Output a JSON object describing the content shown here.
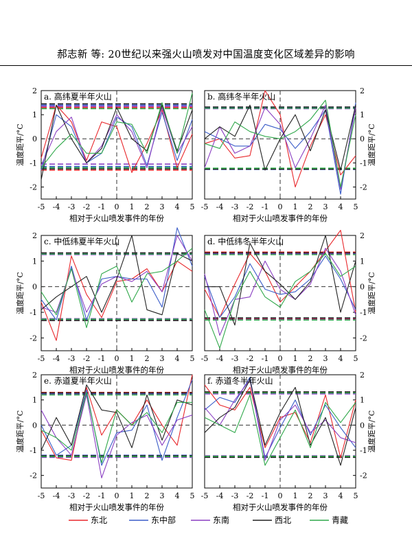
{
  "header": {
    "title": "郝志新  等: 20世纪以来强火山喷发对中国温度变化区域差异的影响"
  },
  "chart_data": {
    "type": "line",
    "x": [
      -5,
      -4,
      -3,
      -2,
      -1,
      0,
      1,
      2,
      3,
      4,
      5
    ],
    "xlim": [
      -5,
      5
    ],
    "ylim": [
      -2.5,
      2
    ],
    "yticks": [
      -2,
      -1,
      0,
      1,
      2
    ],
    "xlabel": "相对于火山喷发事件的年份",
    "ylabel": "温度距平/°C",
    "colors": {
      "东北": "#e8272b",
      "东中部": "#3a5cc8",
      "东南": "#8a3fc2",
      "西北": "#222222",
      "青藏": "#2fa84a"
    },
    "legend": [
      {
        "name": "东北",
        "color": "#e8272b"
      },
      {
        "name": "东中部",
        "color": "#3a5cc8"
      },
      {
        "name": "东南",
        "color": "#8a3fc2"
      },
      {
        "name": "西北",
        "color": "#222222"
      },
      {
        "name": "青藏",
        "color": "#2fa84a"
      }
    ],
    "panels": [
      {
        "id": "a",
        "title": "a. 高纬夏半年火山",
        "yaxis_side": "left",
        "series": [
          {
            "name": "东北",
            "values": [
              -0.8,
              1.4,
              0.7,
              -0.9,
              0.7,
              0.5,
              -1.4,
              -0.2,
              1.2,
              -1.2,
              0.2
            ]
          },
          {
            "name": "东中部",
            "values": [
              -1.3,
              1.0,
              0.5,
              -1.0,
              -0.6,
              0.9,
              0.5,
              -1.1,
              1.1,
              -0.9,
              0.8
            ]
          },
          {
            "name": "东南",
            "values": [
              -1.1,
              0.3,
              0.9,
              -1.0,
              -0.3,
              1.0,
              0.3,
              -1.2,
              1.3,
              -0.6,
              0.5
            ]
          },
          {
            "name": "西北",
            "values": [
              -1.7,
              1.4,
              0.0,
              -1.0,
              -0.4,
              1.3,
              0.0,
              -0.5,
              1.4,
              -0.5,
              1.2
            ]
          },
          {
            "name": "青藏",
            "values": [
              -1.2,
              -0.4,
              0.2,
              -0.6,
              -0.6,
              0.7,
              0.6,
              -0.6,
              1.5,
              -0.6,
              1.9
            ]
          }
        ],
        "thresholds": [
          {
            "name": "东北",
            "values": [
              1.3,
              -1.3
            ]
          },
          {
            "name": "东中部",
            "values": [
              1.4,
              -1.15
            ]
          },
          {
            "name": "东南",
            "values": [
              1.35,
              -1.05
            ]
          },
          {
            "name": "西北",
            "values": [
              1.45,
              -1.25
            ]
          },
          {
            "name": "青藏",
            "values": [
              1.25,
              -1.2
            ]
          }
        ]
      },
      {
        "id": "b",
        "title": "b. 高纬冬半年火山",
        "yaxis_side": "right",
        "series": [
          {
            "name": "东北",
            "values": [
              -0.2,
              0.0,
              -0.8,
              -0.7,
              2.0,
              1.0,
              -2.0,
              -0.3,
              1.0,
              -1.5,
              -0.7
            ]
          },
          {
            "name": "东中部",
            "values": [
              0.3,
              0.0,
              -0.3,
              -0.3,
              0.6,
              0.4,
              -0.4,
              0.3,
              1.2,
              -2.3,
              1.5
            ]
          },
          {
            "name": "东南",
            "values": [
              -1.2,
              0.5,
              -0.6,
              -0.3,
              1.3,
              0.6,
              -1.2,
              0.0,
              1.4,
              -2.1,
              1.3
            ]
          },
          {
            "name": "西北",
            "values": [
              0.0,
              0.5,
              0.1,
              1.4,
              -1.3,
              0.0,
              1.0,
              -0.5,
              1.2,
              -1.3,
              1.4
            ]
          },
          {
            "name": "青藏",
            "values": [
              -0.2,
              -0.4,
              0.7,
              0.3,
              0.1,
              0.0,
              0.3,
              0.8,
              1.6,
              -2.0,
              1.0
            ]
          }
        ],
        "thresholds": [
          {
            "name": "东北",
            "values": [
              1.3,
              -1.25
            ]
          },
          {
            "name": "东中部",
            "values": [
              1.28,
              -1.27
            ]
          },
          {
            "name": "东南",
            "values": [
              1.25,
              -1.24
            ]
          },
          {
            "name": "西北",
            "values": [
              1.32,
              -1.26
            ]
          },
          {
            "name": "青藏",
            "values": [
              1.27,
              -1.22
            ]
          }
        ]
      },
      {
        "id": "c",
        "title": "c. 中低纬夏半年火山",
        "yaxis_side": "left",
        "series": [
          {
            "name": "东北",
            "values": [
              -0.6,
              -2.1,
              1.2,
              -0.3,
              -1.2,
              0.2,
              0.3,
              0.7,
              -0.2,
              1.0,
              0.6
            ]
          },
          {
            "name": "东中部",
            "values": [
              -0.5,
              -1.3,
              0.8,
              -1.3,
              0.3,
              0.4,
              0.3,
              0.3,
              -0.8,
              2.3,
              0.8
            ]
          },
          {
            "name": "东南",
            "values": [
              -0.8,
              -1.0,
              0.7,
              -1.0,
              0.1,
              0.4,
              0.2,
              0.6,
              -0.2,
              2.0,
              1.0
            ]
          },
          {
            "name": "西北",
            "values": [
              -0.9,
              -0.4,
              0.0,
              0.4,
              -1.0,
              0.3,
              2.0,
              -0.9,
              -1.1,
              1.3,
              1.0
            ]
          },
          {
            "name": "青藏",
            "values": [
              -0.2,
              -1.1,
              0.7,
              -1.6,
              0.5,
              0.8,
              -0.6,
              0.5,
              0.6,
              1.0,
              1.5
            ]
          }
        ],
        "thresholds": [
          {
            "name": "东北",
            "values": [
              1.3,
              -1.3
            ]
          },
          {
            "name": "东中部",
            "values": [
              1.28,
              -1.28
            ]
          },
          {
            "name": "东南",
            "values": [
              1.25,
              -1.25
            ]
          },
          {
            "name": "西北",
            "values": [
              1.32,
              -1.32
            ]
          },
          {
            "name": "青藏",
            "values": [
              1.27,
              -1.27
            ]
          }
        ]
      },
      {
        "id": "d",
        "title": "d. 中低纬冬半年火山",
        "yaxis_side": "right",
        "series": [
          {
            "name": "东北",
            "values": [
              -0.1,
              -1.2,
              0.1,
              1.3,
              0.6,
              -0.6,
              0.0,
              0.6,
              1.4,
              2.2,
              -1.0
            ]
          },
          {
            "name": "东中部",
            "values": [
              0.4,
              -1.2,
              -0.4,
              0.9,
              -0.1,
              -0.3,
              -0.2,
              0.3,
              1.2,
              0.3,
              -0.9
            ]
          },
          {
            "name": "东南",
            "values": [
              0.5,
              -1.9,
              -0.5,
              -0.4,
              1.0,
              -0.1,
              -0.5,
              0.1,
              1.5,
              0.6,
              -1.1
            ]
          },
          {
            "name": "西北",
            "values": [
              0.0,
              0.0,
              -1.5,
              1.7,
              0.6,
              0.1,
              -0.5,
              0.2,
              2.0,
              -1.0,
              1.0
            ]
          },
          {
            "name": "青藏",
            "values": [
              -0.9,
              -2.4,
              -0.5,
              0.6,
              -0.4,
              -0.8,
              0.2,
              0.6,
              1.3,
              0.4,
              0.8
            ]
          }
        ],
        "thresholds": [
          {
            "name": "东北",
            "values": [
              1.35,
              -1.25
            ]
          },
          {
            "name": "东中部",
            "values": [
              1.3,
              -1.3
            ]
          },
          {
            "name": "东南",
            "values": [
              1.28,
              -1.28
            ]
          },
          {
            "name": "西北",
            "values": [
              1.32,
              -1.22
            ]
          },
          {
            "name": "青藏",
            "values": [
              1.25,
              -1.3
            ]
          }
        ]
      },
      {
        "id": "e",
        "title": "e. 赤道夏半年火山",
        "yaxis_side": "left",
        "series": [
          {
            "name": "东北",
            "values": [
              -0.2,
              -1.3,
              -1.4,
              1.5,
              -0.4,
              0.6,
              0.0,
              1.0,
              0.0,
              -0.8,
              2.0
            ]
          },
          {
            "name": "东中部",
            "values": [
              0.0,
              -1.2,
              -0.8,
              1.4,
              -1.6,
              -0.3,
              -0.2,
              0.8,
              -1.4,
              0.3,
              1.8
            ]
          },
          {
            "name": "东南",
            "values": [
              0.6,
              -0.5,
              -1.2,
              1.2,
              -2.1,
              -0.4,
              0.1,
              0.4,
              -0.8,
              0.2,
              0.4
            ]
          },
          {
            "name": "西北",
            "values": [
              -1.0,
              0.3,
              -0.8,
              1.6,
              0.6,
              0.5,
              -0.9,
              1.2,
              -0.6,
              1.0,
              0.8
            ]
          },
          {
            "name": "青藏",
            "values": [
              -0.2,
              -0.5,
              -1.0,
              1.3,
              -1.5,
              0.6,
              0.0,
              0.5,
              -0.3,
              0.9,
              0.9
            ]
          }
        ],
        "thresholds": [
          {
            "name": "东北",
            "values": [
              1.3,
              -1.25
            ]
          },
          {
            "name": "东中部",
            "values": [
              1.25,
              -1.2
            ]
          },
          {
            "name": "东南",
            "values": [
              1.22,
              -1.28
            ]
          },
          {
            "name": "西北",
            "values": [
              1.28,
              -1.22
            ]
          },
          {
            "name": "青藏",
            "values": [
              1.2,
              -1.25
            ]
          }
        ]
      },
      {
        "id": "f",
        "title": "f. 赤道冬半年火山",
        "yaxis_side": "right",
        "series": [
          {
            "name": "东北",
            "values": [
              1.6,
              0.8,
              0.6,
              1.5,
              -0.9,
              0.3,
              0.5,
              -0.7,
              1.2,
              -1.3,
              1.0
            ]
          },
          {
            "name": "东中部",
            "values": [
              0.6,
              1.1,
              0.9,
              1.9,
              -1.3,
              -0.1,
              1.0,
              -0.4,
              0.8,
              -0.1,
              -0.9
            ]
          },
          {
            "name": "东南",
            "values": [
              0.7,
              0.0,
              1.0,
              1.8,
              -1.4,
              0.2,
              0.8,
              -0.3,
              0.2,
              -0.5,
              -0.7
            ]
          },
          {
            "name": "西北",
            "values": [
              -0.3,
              0.3,
              0.7,
              1.8,
              -0.8,
              0.5,
              1.5,
              -0.8,
              0.3,
              -1.6,
              0.7
            ]
          },
          {
            "name": "青藏",
            "values": [
              0.3,
              0.0,
              -0.3,
              1.2,
              -1.6,
              -0.5,
              0.6,
              -0.9,
              0.9,
              0.1,
              0.9
            ]
          }
        ],
        "thresholds": [
          {
            "name": "东北",
            "values": [
              1.3,
              -1.25
            ]
          },
          {
            "name": "东中部",
            "values": [
              1.26,
              -1.26
            ]
          },
          {
            "name": "东南",
            "values": [
              1.24,
              -1.22
            ]
          },
          {
            "name": "西北",
            "values": [
              1.32,
              -1.28
            ]
          },
          {
            "name": "青藏",
            "values": [
              1.28,
              -1.24
            ]
          }
        ]
      }
    ]
  }
}
